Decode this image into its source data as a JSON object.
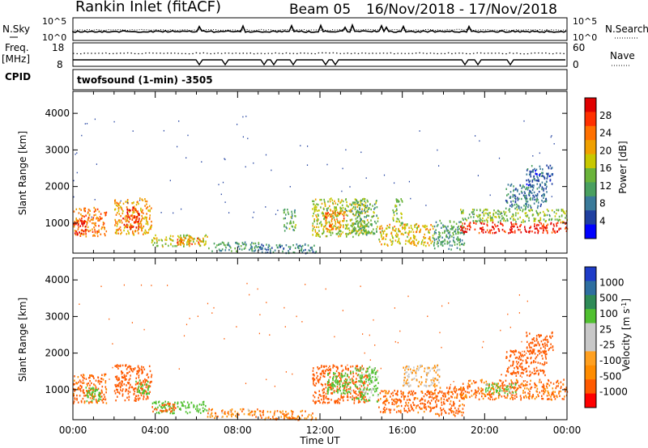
{
  "header": {
    "station": "Rankin Inlet (fitACF)",
    "beam": "Beam 05",
    "date_range": "16/Nov/2018 - 17/Nov/2018"
  },
  "top_panels": {
    "nsky_label": "N.Sky",
    "nsearch_label": "N.Search",
    "noise_ticks": [
      "10^5",
      "10^0"
    ],
    "freq_label": "Freq.",
    "freq_unit": "[MHz]",
    "freq_ticks": [
      "18",
      "8"
    ],
    "nave_label": "Nave",
    "nave_ticks": [
      "60",
      "0"
    ],
    "cpid_label": "CPID",
    "cpid_text": "twofsound (1-min) -3505"
  },
  "colors": {
    "power_scale": [
      "#0000ff",
      "#2040a0",
      "#3a7a9a",
      "#4aa060",
      "#6ab43a",
      "#c8c800",
      "#f0a000",
      "#ff7000",
      "#ff3000",
      "#e00000"
    ],
    "velocity_scale": [
      "#ff0000",
      "#ff5a00",
      "#ff8c00",
      "#ffa020",
      "#c8c8c8",
      "#c8c8c8",
      "#50c030",
      "#2e8b57",
      "#2e6fa0",
      "#1e3cc8"
    ]
  },
  "chart_data": [
    {
      "type": "heatmap",
      "title": "Power",
      "ylabel": "Slant Range [km]",
      "xlabel": "",
      "y_ticks": [
        1000,
        2000,
        3000,
        4000
      ],
      "ylim": [
        180,
        4600
      ],
      "x_ticks": [
        "00:00",
        "04:00",
        "08:00",
        "12:00",
        "16:00",
        "20:00",
        "00:00"
      ],
      "xlim_hours": [
        0,
        24
      ],
      "colorbar_label": "Power [dB]",
      "colorbar_ticks": [
        "4",
        "8",
        "12",
        "16",
        "20",
        "24",
        "28"
      ],
      "colorbar_range": [
        0,
        30
      ],
      "regions": [
        {
          "t": [
            0.0,
            1.6
          ],
          "r": [
            650,
            1450
          ],
          "v": 22
        },
        {
          "t": [
            0.0,
            0.6
          ],
          "r": [
            700,
            1100
          ],
          "v": 28
        },
        {
          "t": [
            2.0,
            3.8
          ],
          "r": [
            700,
            1700
          ],
          "v": 20
        },
        {
          "t": [
            2.4,
            3.2
          ],
          "r": [
            850,
            1450
          ],
          "v": 26
        },
        {
          "t": [
            3.8,
            6.5
          ],
          "r": [
            380,
            700
          ],
          "v": 16
        },
        {
          "t": [
            5.0,
            6.3
          ],
          "r": [
            420,
            650
          ],
          "v": 22
        },
        {
          "t": [
            6.5,
            9.0
          ],
          "r": [
            250,
            500
          ],
          "v": 10
        },
        {
          "t": [
            9.0,
            11.8
          ],
          "r": [
            200,
            450
          ],
          "v": 8
        },
        {
          "t": [
            10.2,
            10.8
          ],
          "r": [
            800,
            1400
          ],
          "v": 12
        },
        {
          "t": [
            11.6,
            14.3
          ],
          "r": [
            650,
            1700
          ],
          "v": 16
        },
        {
          "t": [
            12.2,
            13.2
          ],
          "r": [
            850,
            1350
          ],
          "v": 22
        },
        {
          "t": [
            13.5,
            14.8
          ],
          "r": [
            700,
            1650
          ],
          "v": 12
        },
        {
          "t": [
            14.8,
            17.5
          ],
          "r": [
            400,
            1000
          ],
          "v": 18
        },
        {
          "t": [
            15.5,
            16.0
          ],
          "r": [
            1000,
            1700
          ],
          "v": 14
        },
        {
          "t": [
            17.5,
            19.0
          ],
          "r": [
            300,
            1100
          ],
          "v": 10
        },
        {
          "t": [
            18.8,
            24.0
          ],
          "r": [
            750,
            1050
          ],
          "v": 27
        },
        {
          "t": [
            18.8,
            24.0
          ],
          "r": [
            1050,
            1400
          ],
          "v": 14
        },
        {
          "t": [
            21.0,
            23.0
          ],
          "r": [
            1400,
            2100
          ],
          "v": 8
        },
        {
          "t": [
            22.0,
            23.3
          ],
          "r": [
            2000,
            2600
          ],
          "v": 6
        }
      ]
    },
    {
      "type": "heatmap",
      "title": "Velocity",
      "ylabel": "Slant Range [km]",
      "xlabel": "Time UT",
      "y_ticks": [
        1000,
        2000,
        3000,
        4000
      ],
      "ylim": [
        180,
        4600
      ],
      "x_ticks": [
        "00:00",
        "04:00",
        "08:00",
        "12:00",
        "16:00",
        "20:00",
        "00:00"
      ],
      "xlim_hours": [
        0,
        24
      ],
      "colorbar_label": "Velocity [m s^-1]",
      "colorbar_ticks": [
        "-1000",
        "-500",
        "-100",
        "-25",
        "25",
        "100",
        "500",
        "1000"
      ],
      "colorbar_range": [
        -1000,
        1000
      ],
      "regions": [
        {
          "t": [
            0.0,
            1.6
          ],
          "r": [
            650,
            1450
          ],
          "v": -150
        },
        {
          "t": [
            0.6,
            1.4
          ],
          "r": [
            700,
            1100
          ],
          "v": 200
        },
        {
          "t": [
            2.0,
            3.8
          ],
          "r": [
            700,
            1700
          ],
          "v": -200
        },
        {
          "t": [
            3.0,
            3.7
          ],
          "r": [
            900,
            1300
          ],
          "v": 300
        },
        {
          "t": [
            3.8,
            6.5
          ],
          "r": [
            380,
            700
          ],
          "v": 200
        },
        {
          "t": [
            3.8,
            5.0
          ],
          "r": [
            420,
            650
          ],
          "v": -200
        },
        {
          "t": [
            6.5,
            9.0
          ],
          "r": [
            250,
            500
          ],
          "v": -60
        },
        {
          "t": [
            9.0,
            11.8
          ],
          "r": [
            200,
            450
          ],
          "v": -80
        },
        {
          "t": [
            11.6,
            14.3
          ],
          "r": [
            650,
            1700
          ],
          "v": -200
        },
        {
          "t": [
            12.3,
            13.5
          ],
          "r": [
            900,
            1500
          ],
          "v": 200
        },
        {
          "t": [
            13.5,
            14.8
          ],
          "r": [
            700,
            1650
          ],
          "v": 150
        },
        {
          "t": [
            14.8,
            17.5
          ],
          "r": [
            400,
            1000
          ],
          "v": -150
        },
        {
          "t": [
            16.0,
            17.8
          ],
          "r": [
            1100,
            1700
          ],
          "v": 0
        },
        {
          "t": [
            17.5,
            19.0
          ],
          "r": [
            300,
            1100
          ],
          "v": -150
        },
        {
          "t": [
            18.8,
            24.0
          ],
          "r": [
            750,
            1300
          ],
          "v": -120
        },
        {
          "t": [
            20.0,
            21.5
          ],
          "r": [
            900,
            1200
          ],
          "v": 150
        },
        {
          "t": [
            21.0,
            23.0
          ],
          "r": [
            1400,
            2100
          ],
          "v": -200
        },
        {
          "t": [
            22.0,
            23.3
          ],
          "r": [
            2000,
            2600
          ],
          "v": -300
        }
      ]
    }
  ]
}
